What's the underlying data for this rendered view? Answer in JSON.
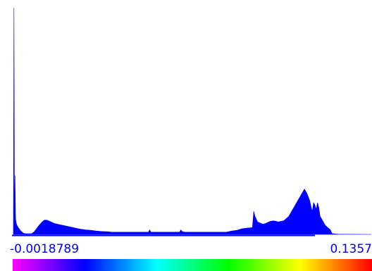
{
  "histogram": {
    "min_label": "-0.0018789",
    "max_label": "0.1357",
    "fill_color": "#0000ff",
    "axis_color": "#0000ff",
    "colormap": [
      "#ff00ff",
      "#8000ff",
      "#0000ff",
      "#0080ff",
      "#00ffff",
      "#00ff80",
      "#00ff00",
      "#80ff00",
      "#ffff00",
      "#ff8000",
      "#ff0000"
    ]
  },
  "chart_data": {
    "type": "area",
    "title": "",
    "xlabel": "",
    "ylabel": "",
    "xlim": [
      -0.0018789,
      0.1357
    ],
    "grid": false,
    "series": [
      {
        "x": [
          -0.00188,
          -0.00165,
          -0.00145,
          -0.00125,
          -0.00105,
          -0.0008,
          -0.0005,
          0.0,
          0.001,
          0.002,
          0.003,
          0.004,
          0.005,
          0.006,
          0.007,
          0.008,
          0.009,
          0.01,
          0.011,
          0.012,
          0.013,
          0.014,
          0.016,
          0.018,
          0.02,
          0.022,
          0.024,
          0.026,
          0.028,
          0.03,
          0.032,
          0.034,
          0.036,
          0.04,
          0.044,
          0.048,
          0.05,
          0.0505,
          0.051,
          0.052,
          0.056,
          0.06,
          0.062,
          0.0625,
          0.063,
          0.064,
          0.068,
          0.072,
          0.076,
          0.08,
          0.082,
          0.084,
          0.086,
          0.088,
          0.09,
          0.0905,
          0.091,
          0.092,
          0.093,
          0.094,
          0.095,
          0.096,
          0.097,
          0.098,
          0.099,
          0.1,
          0.101,
          0.102,
          0.103,
          0.104,
          0.105,
          0.106,
          0.107,
          0.108,
          0.109,
          0.11,
          0.111,
          0.112,
          0.113,
          0.1135,
          0.114,
          0.1145,
          0.115,
          0.1155,
          0.116,
          0.117,
          0.118,
          0.119,
          0.12,
          0.1205,
          0.121,
          0.122,
          0.123,
          0.125,
          0.1357
        ],
        "y": [
          0.05,
          100,
          4,
          26,
          7,
          5,
          4,
          3,
          1.5,
          0.5,
          0.3,
          0.3,
          0.3,
          1,
          2.5,
          4,
          5.3,
          6.3,
          6.3,
          5.8,
          5.3,
          4.8,
          4.3,
          3.8,
          3.3,
          2.8,
          2.3,
          2.0,
          1.8,
          1.5,
          1.3,
          1.2,
          1.0,
          1.0,
          1.0,
          1.0,
          1.0,
          2.0,
          1.0,
          1.0,
          1.0,
          1.0,
          1.0,
          2.0,
          1.2,
          1.0,
          1.0,
          1.0,
          1.0,
          1.0,
          1.5,
          1.8,
          2.5,
          2.8,
          3.0,
          10.2,
          8,
          5.5,
          5,
          4.5,
          4.8,
          5.3,
          5.8,
          6.0,
          5.8,
          5.5,
          5.8,
          6.0,
          7.0,
          8.0,
          10.0,
          12.0,
          14.0,
          16.0,
          18.0,
          20.0,
          18.0,
          15.0,
          10.0,
          14.0,
          13.0,
          11.0,
          14.0,
          12.0,
          8.0,
          6.0,
          4.0,
          3.0,
          2.0,
          0.5,
          0.3,
          0.2,
          0.1,
          0.05,
          0
        ]
      }
    ]
  }
}
